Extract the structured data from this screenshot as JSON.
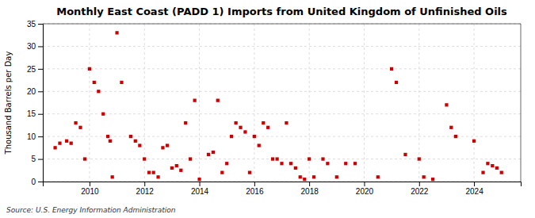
{
  "chart_data": {
    "type": "scatter",
    "title": "Monthly East Coast (PADD 1) Imports from United Kingdom of Unfinished Oils",
    "ylabel": "Thousand Barrels per Day",
    "source": "Source: U.S. Energy Information Administration",
    "color": "#cc0000",
    "marker": "square",
    "grid": true,
    "xlim": [
      2008.3,
      2025.7
    ],
    "ylim": [
      0,
      35
    ],
    "xticks": [
      2010,
      2012,
      2014,
      2016,
      2018,
      2020,
      2022,
      2024
    ],
    "yticks": [
      0,
      5,
      10,
      15,
      20,
      25,
      30,
      35
    ],
    "x": [
      2008.75,
      2008.92,
      2009.17,
      2009.33,
      2009.5,
      2009.67,
      2009.83,
      2010.0,
      2010.17,
      2010.33,
      2010.5,
      2010.67,
      2010.75,
      2010.83,
      2011.0,
      2011.17,
      2011.5,
      2011.67,
      2011.83,
      2012.0,
      2012.17,
      2012.33,
      2012.5,
      2012.67,
      2012.83,
      2013.0,
      2013.17,
      2013.33,
      2013.5,
      2013.67,
      2013.83,
      2014.0,
      2014.33,
      2014.5,
      2014.67,
      2014.83,
      2015.0,
      2015.17,
      2015.33,
      2015.5,
      2015.67,
      2015.83,
      2016.0,
      2016.17,
      2016.33,
      2016.5,
      2016.67,
      2016.83,
      2017.0,
      2017.17,
      2017.33,
      2017.5,
      2017.67,
      2017.83,
      2018.0,
      2018.17,
      2018.5,
      2018.67,
      2019.0,
      2019.33,
      2019.67,
      2020.5,
      2021.0,
      2021.17,
      2021.5,
      2022.0,
      2022.17,
      2022.5,
      2023.0,
      2023.17,
      2023.33,
      2024.0,
      2024.33,
      2024.5,
      2024.67,
      2024.83,
      2025.0
    ],
    "values": [
      7.5,
      8.5,
      9.0,
      8.5,
      13.0,
      12.0,
      5.0,
      25.0,
      22.0,
      20.0,
      15.0,
      10.0,
      9.0,
      1.0,
      33.0,
      22.0,
      10.0,
      9.0,
      8.0,
      5.0,
      2.0,
      2.0,
      1.0,
      7.5,
      8.0,
      3.0,
      3.5,
      2.5,
      13.0,
      5.0,
      18.0,
      0.5,
      6.0,
      6.5,
      18.0,
      2.0,
      4.0,
      10.0,
      13.0,
      12.0,
      11.0,
      2.0,
      10.0,
      8.0,
      13.0,
      12.0,
      5.0,
      5.0,
      4.0,
      13.0,
      4.0,
      3.0,
      1.0,
      0.5,
      5.0,
      1.0,
      5.0,
      4.0,
      1.0,
      4.0,
      4.0,
      1.0,
      25.0,
      22.0,
      6.0,
      5.0,
      1.0,
      0.5,
      17.0,
      12.0,
      10.0,
      9.0,
      2.0,
      4.0,
      3.5,
      3.0,
      2.0
    ]
  }
}
